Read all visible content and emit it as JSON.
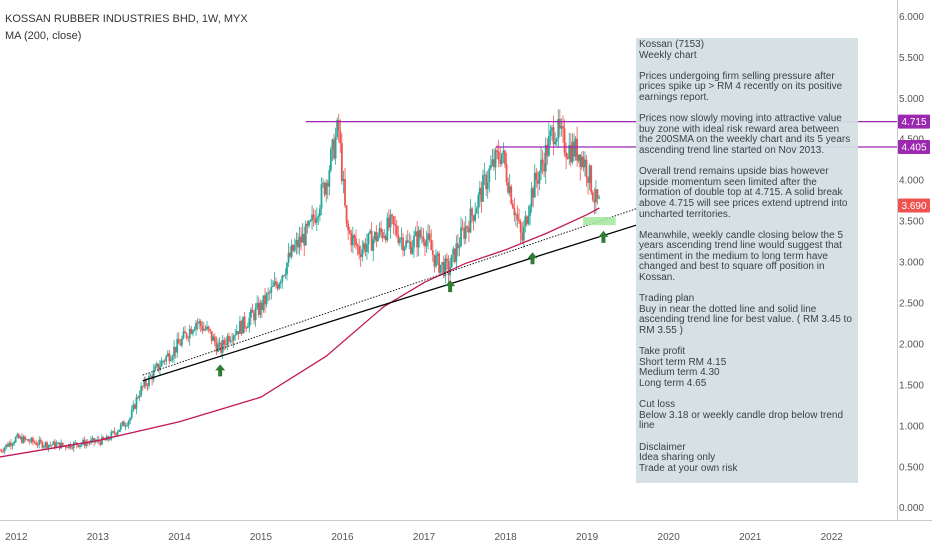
{
  "header": {
    "title": "KOSSAN RUBBER INDUSTRIES BHD, 1W, MYX",
    "indicator": "MA (200, close)"
  },
  "note": {
    "text": "Kossan (7153)\nWeekly chart\n\nPrices undergoing firm selling pressure after prices spike up > RM 4 recently on its positive earnings report.\n\nPrices now slowly moving into attractive value buy zone with ideal risk reward area between the 200SMA on the weekly chart and its 5 years ascending trend line started on Nov 2013.\n\nOverall trend remains upside bias however upside momentum seen limited after the formation of double top at 4.715. A solid break above 4.715 will see prices extend uptrend into uncharted territories.\n\nMeanwhile, weekly candle closing below the 5 years ascending trend line would suggest that sentiment in the medium to long term have changed and best to square off position in Kossan.\n\nTrading plan\nBuy in near the dotted line and solid line ascending trend line for best value. ( RM 3.45 to RM 3.55 )\n\nTake profit\nShort term RM 4.15\nMedium term 4.30\nLong term 4.65\n\nCut loss\nBelow 3.18 or weekly candle drop below trend line\n\nDisclaimer\nIdea sharing only\nTrade at your own risk"
  },
  "colors": {
    "up": "#26a69a",
    "down": "#ef5350",
    "ma": "#c2185b",
    "resistance": "#9c27b0",
    "trend": "#000000",
    "last_price": "#ef5350",
    "zone": "#a5e6a0",
    "arrow": "#2e7d32"
  },
  "chart_data": {
    "type": "line",
    "title": "KOSSAN RUBBER INDUSTRIES BHD, 1W, MYX",
    "xlabel": "",
    "ylabel": "",
    "ylim": [
      -0.15,
      6.2
    ],
    "xlim": [
      2011.8,
      2022.8
    ],
    "x_ticks": [
      "2012",
      "2013",
      "2014",
      "2015",
      "2016",
      "2017",
      "2018",
      "2019",
      "2020",
      "2021",
      "2022"
    ],
    "y_ticks": [
      "0.000",
      "0.500",
      "1.000",
      "1.500",
      "2.000",
      "2.500",
      "3.000",
      "3.500",
      "4.000",
      "4.500",
      "5.000",
      "5.500",
      "6.000"
    ],
    "series": [
      {
        "name": "",
        "role": "price",
        "x": [
          2011.8,
          2012.0,
          2012.3,
          2012.6,
          2012.9,
          2013.1,
          2013.4,
          2013.5,
          2013.65,
          2013.8,
          2014.0,
          2014.2,
          2014.35,
          2014.5,
          2014.6,
          2014.8,
          2015.0,
          2015.2,
          2015.4,
          2015.6,
          2015.8,
          2015.95,
          2016.05,
          2016.2,
          2016.4,
          2016.6,
          2016.8,
          2017.0,
          2017.15,
          2017.3,
          2017.45,
          2017.6,
          2017.8,
          2017.95,
          2018.1,
          2018.2,
          2018.3,
          2018.45,
          2018.6,
          2018.75,
          2018.9,
          2019.0,
          2019.1,
          2019.15
        ],
        "y": [
          0.7,
          0.85,
          0.78,
          0.76,
          0.8,
          0.82,
          1.1,
          1.4,
          1.6,
          1.8,
          2.0,
          2.28,
          2.15,
          1.92,
          2.1,
          2.25,
          2.45,
          2.75,
          3.15,
          3.4,
          4.0,
          4.65,
          3.4,
          3.15,
          3.3,
          3.45,
          3.2,
          3.35,
          3.0,
          2.9,
          3.3,
          3.6,
          4.1,
          4.35,
          3.7,
          3.25,
          3.8,
          4.2,
          4.65,
          4.4,
          4.35,
          4.15,
          3.75,
          3.69
        ]
      },
      {
        "name": "MA (200, close)",
        "role": "ma",
        "x": [
          2011.8,
          2013.0,
          2014.0,
          2015.0,
          2015.8,
          2016.5,
          2017.0,
          2017.5,
          2018.0,
          2018.5,
          2019.0,
          2019.15
        ],
        "y": [
          0.62,
          0.82,
          1.05,
          1.35,
          1.85,
          2.45,
          2.75,
          2.98,
          3.15,
          3.35,
          3.58,
          3.66
        ]
      }
    ],
    "lines": [
      {
        "kind": "resistance",
        "y": 4.715,
        "x": [
          2015.55,
          2022.8
        ]
      },
      {
        "kind": "resistance",
        "y": 4.405,
        "x": [
          2017.88,
          2022.8
        ]
      },
      {
        "kind": "trend-solid",
        "x": [
          2013.55,
          2019.6
        ],
        "y": [
          1.55,
          3.45
        ]
      },
      {
        "kind": "trend-dotted",
        "x": [
          2013.55,
          2019.6
        ],
        "y": [
          1.62,
          3.65
        ]
      }
    ],
    "zone": {
      "x": [
        2018.95,
        2019.35
      ],
      "y": [
        3.45,
        3.55
      ]
    },
    "arrows": [
      {
        "x": 2014.5,
        "y": 1.75
      },
      {
        "x": 2017.32,
        "y": 2.78
      },
      {
        "x": 2018.33,
        "y": 3.12
      },
      {
        "x": 2019.2,
        "y": 3.38
      }
    ],
    "price_labels": [
      {
        "value": "4.715",
        "y": 4.715,
        "kind": "resistance"
      },
      {
        "value": "4.405",
        "y": 4.405,
        "kind": "resistance"
      },
      {
        "value": "3.690",
        "y": 3.69,
        "kind": "last"
      }
    ],
    "grid": false,
    "legend": "none"
  }
}
